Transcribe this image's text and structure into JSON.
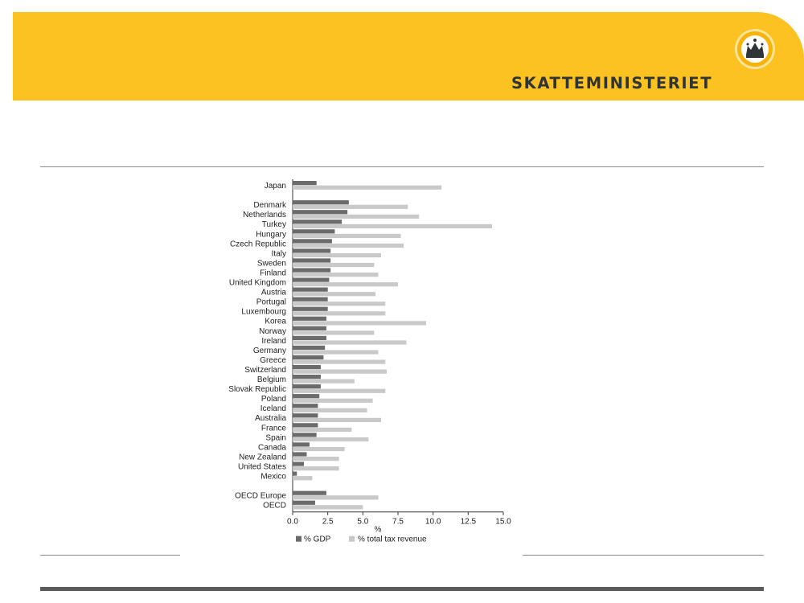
{
  "header": {
    "brand_name": "SKATTEMINISTERIET",
    "logo_icon": "crown-emblem-icon",
    "banner_color": "#fcc221"
  },
  "chart_data": {
    "type": "bar",
    "orientation": "horizontal",
    "xlabel": "%",
    "xlim": [
      0,
      15
    ],
    "xticks": [
      "0.0",
      "2.5",
      "5.0",
      "7.5",
      "10.0",
      "12.5",
      "15.0"
    ],
    "grid": false,
    "legend": "bottom",
    "categories": [
      "Japan",
      "Denmark",
      "Netherlands",
      "Turkey",
      "Hungary",
      "Czech Republic",
      "Italy",
      "Sweden",
      "Finland",
      "United Kingdom",
      "Austria",
      "Portugal",
      "Luxembourg",
      "Korea",
      "Norway",
      "Ireland",
      "Germany",
      "Greece",
      "Switzerland",
      "Belgium",
      "Slovak Republic",
      "Poland",
      "Iceland",
      "Australia",
      "France",
      "Spain",
      "Canada",
      "New Zealand",
      "United States",
      "Mexico",
      "OECD Europe",
      "OECD"
    ],
    "series": [
      {
        "name": "% GDP",
        "color": "#6b6b6b",
        "values": [
          1.7,
          4.0,
          3.9,
          3.5,
          3.0,
          2.8,
          2.7,
          2.7,
          2.7,
          2.6,
          2.5,
          2.5,
          2.5,
          2.4,
          2.4,
          2.4,
          2.3,
          2.2,
          2.0,
          2.0,
          2.0,
          1.9,
          1.8,
          1.8,
          1.8,
          1.7,
          1.2,
          1.0,
          0.8,
          0.3,
          2.4,
          1.6
        ]
      },
      {
        "name": "% total tax revenue",
        "color": "#c9c9c9",
        "values": [
          10.6,
          8.2,
          9.0,
          14.2,
          7.7,
          7.9,
          6.3,
          5.8,
          6.1,
          7.5,
          5.9,
          6.6,
          6.6,
          9.5,
          5.8,
          8.1,
          6.1,
          6.6,
          6.7,
          4.4,
          6.6,
          5.7,
          5.3,
          6.3,
          4.2,
          5.4,
          3.7,
          3.3,
          3.3,
          1.4,
          6.1,
          5.0
        ]
      }
    ],
    "group_gaps_after": [
      "Japan",
      "Mexico"
    ]
  }
}
